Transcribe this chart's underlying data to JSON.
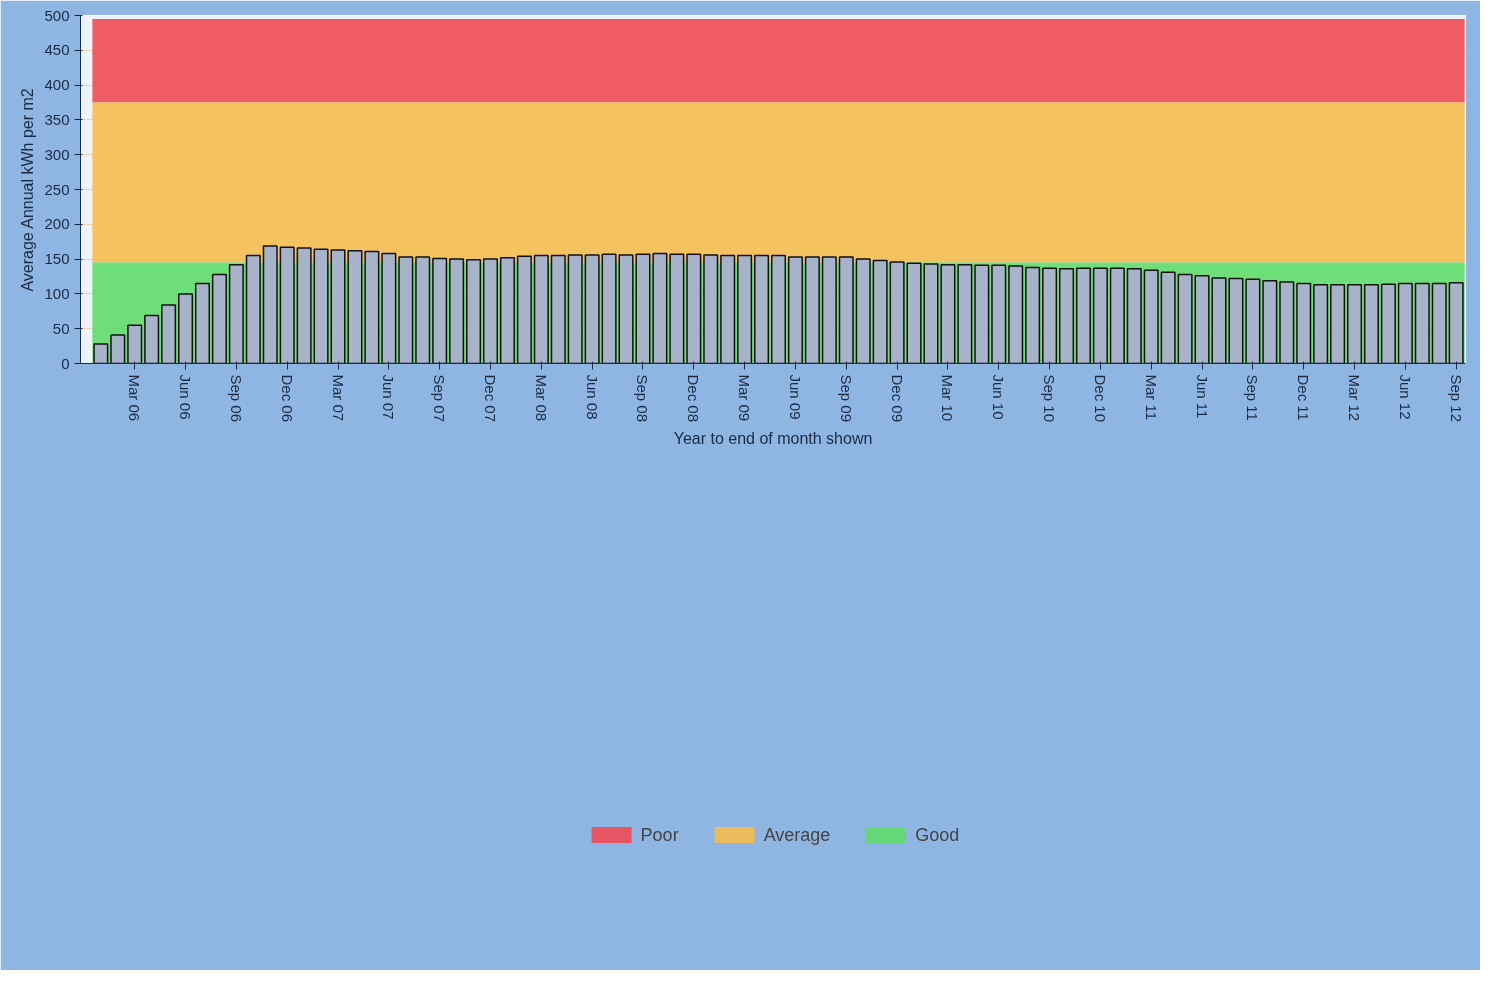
{
  "chart_data": {
    "type": "bar",
    "xlabel": "Year to end of month shown",
    "ylabel": "Average Annual kWh per m2",
    "categories": [
      null,
      null,
      "Mar 06",
      null,
      null,
      "Jun 06",
      null,
      null,
      "Sep 06",
      null,
      null,
      "Dec 06",
      null,
      null,
      "Mar 07",
      null,
      null,
      "Jun 07",
      null,
      null,
      "Sep 07",
      null,
      null,
      "Dec 07",
      null,
      null,
      "Mar 08",
      null,
      null,
      "Jun 08",
      null,
      null,
      "Sep 08",
      null,
      null,
      "Dec 08",
      null,
      null,
      "Mar 09",
      null,
      null,
      "Jun 09",
      null,
      null,
      "Sep 09",
      null,
      null,
      "Dec 09",
      null,
      null,
      "Mar 10",
      null,
      null,
      "Jun 10",
      null,
      null,
      "Sep 10",
      null,
      null,
      "Dec 10",
      null,
      null,
      "Mar 11",
      null,
      null,
      "Jun 11",
      null,
      null,
      "Sep 11",
      null,
      null,
      "Dec 11",
      null,
      null,
      "Mar 12",
      null,
      null,
      "Jun 12",
      null,
      null,
      "Sep 12"
    ],
    "values": [
      28,
      41,
      55,
      69,
      84,
      100,
      115,
      128,
      142,
      155,
      169,
      167,
      166,
      164,
      163,
      162,
      161,
      158,
      153,
      153,
      151,
      150,
      149,
      150,
      152,
      154,
      155,
      155,
      156,
      156,
      157,
      156,
      157,
      158,
      157,
      157,
      156,
      155,
      155,
      155,
      155,
      153,
      153,
      153,
      153,
      150,
      148,
      146,
      144,
      143,
      142,
      142,
      141,
      141,
      140,
      138,
      137,
      136,
      137,
      137,
      137,
      136,
      134,
      131,
      128,
      126,
      123,
      122,
      121,
      119,
      117,
      115,
      113,
      113,
      113,
      113,
      114,
      115,
      115,
      115,
      116
    ],
    "color": "#a7b3c8",
    "ylim": [
      0,
      500
    ],
    "yticks": [
      0,
      50,
      100,
      150,
      200,
      250,
      300,
      350,
      400,
      450,
      500
    ],
    "bands": [
      {
        "axis": "y",
        "from": 375,
        "to": 495,
        "label": "Poor",
        "color": "#ee4b55"
      },
      {
        "axis": "y",
        "from": 145,
        "to": 375,
        "label": "Average",
        "color": "#f5bd4f"
      },
      {
        "axis": "y",
        "from": 0,
        "to": 145,
        "label": "Good",
        "color": "#5fdc6a"
      }
    ],
    "grid": "y",
    "legend": "bottom"
  }
}
